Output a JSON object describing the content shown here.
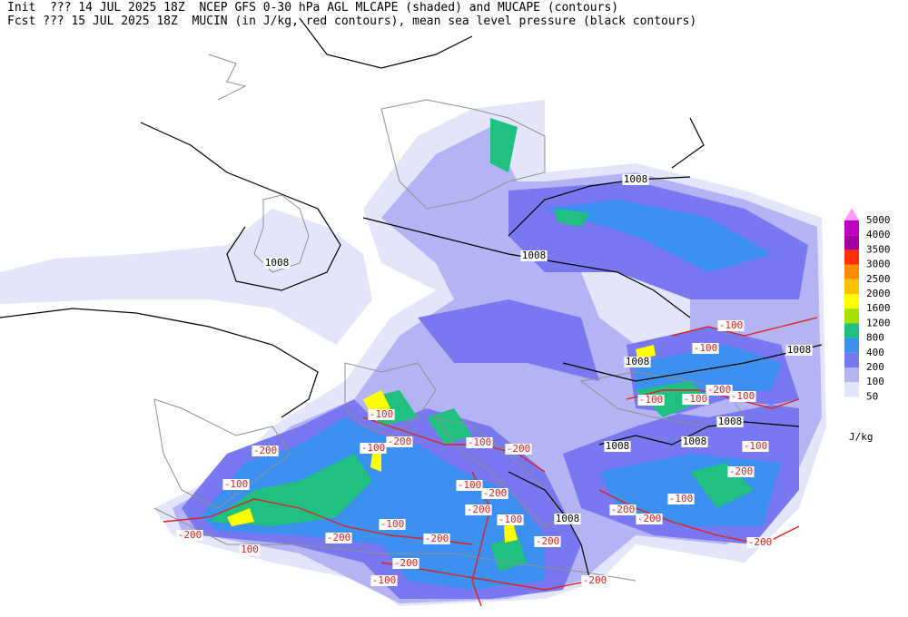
{
  "header": {
    "line1": "Init  ??? 14 JUL 2025 18Z  NCEP GFS 0-30 hPa AGL MLCAPE (shaded) and MUCAPE (contours)",
    "line2": "Fcst ??? 15 JUL 2025 18Z  MUCIN (in J/kg, red contours), mean sea level pressure (black contours)"
  },
  "colorbar": {
    "levels": [
      "5000",
      "4000",
      "3500",
      "3000",
      "2500",
      "2000",
      "1600",
      "1200",
      "800",
      "400",
      "200",
      "100",
      "50"
    ],
    "colors": [
      "#ff00ff",
      "#c000c0",
      "#a000a0",
      "#ff3000",
      "#ff8c00",
      "#ffc000",
      "#ffff00",
      "#a8e000",
      "#20c080",
      "#3c90f0",
      "#7878f0",
      "#b4b4f4",
      "#e4e4fa"
    ],
    "unit": "J/kg"
  },
  "contour_labels": [
    "1008",
    "1008",
    "1008",
    "1008",
    "1008",
    "1008",
    "1008",
    "1008",
    "1008",
    "-100",
    "-200",
    "-200",
    "-100",
    "-100",
    "-200",
    "-100",
    "-100",
    "-200",
    "-100",
    "-200",
    "-100",
    "-200",
    "-200",
    "100",
    "-200",
    "-200",
    "-200",
    "-100",
    "-200",
    "-100",
    "-100",
    "-100",
    "-100",
    "-200",
    "-100",
    "-100",
    "-200",
    "-100",
    "-200",
    "-200",
    "-200"
  ]
}
